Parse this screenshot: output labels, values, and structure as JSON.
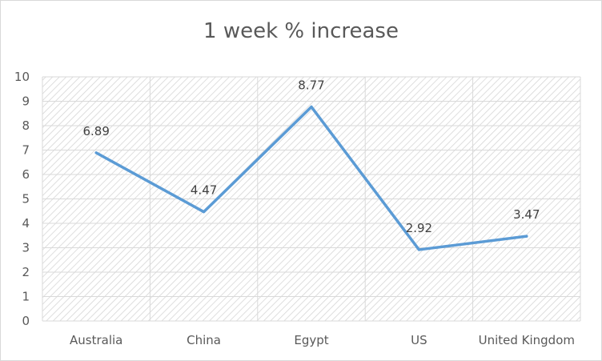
{
  "chart_data": {
    "type": "line",
    "title": "1 week % increase",
    "xlabel": "",
    "ylabel": "",
    "categories": [
      "Australia",
      "China",
      "Egypt",
      "US",
      "United Kingdom"
    ],
    "series": [
      {
        "values": [
          6.89,
          4.47,
          8.77,
          2.92,
          3.47
        ],
        "color": "#5b9bd5"
      }
    ],
    "data_labels": [
      "6.89",
      "4.47",
      "8.77",
      "2.92",
      "3.47"
    ],
    "ylim": [
      0,
      10
    ],
    "yticks": [
      "0",
      "1",
      "2",
      "3",
      "4",
      "5",
      "6",
      "7",
      "8",
      "9",
      "10"
    ],
    "grid": true,
    "legend": "none",
    "plot_fill": "diagonal-hatch"
  }
}
